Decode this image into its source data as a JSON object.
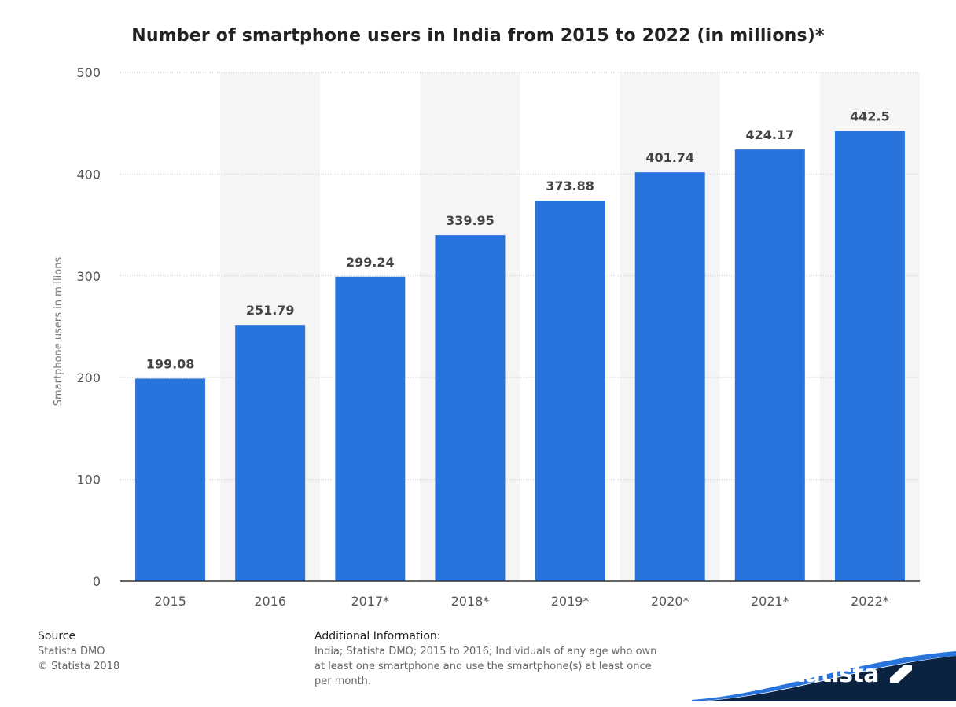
{
  "chart_data": {
    "type": "bar",
    "title": "Number of smartphone users in India from 2015 to 2022 (in millions)*",
    "categories": [
      "2015",
      "2016",
      "2017*",
      "2018*",
      "2019*",
      "2020*",
      "2021*",
      "2022*"
    ],
    "values": [
      199.08,
      251.79,
      299.24,
      339.95,
      373.88,
      401.74,
      424.17,
      442.5
    ],
    "value_labels": [
      "199.08",
      "251.79",
      "299.24",
      "339.95",
      "373.88",
      "401.74",
      "424.17",
      "442.5"
    ],
    "xlabel": "",
    "ylabel": "Smartphone users in millions",
    "ylim": [
      0,
      500
    ],
    "yticks": [
      "0",
      "100",
      "200",
      "300",
      "400",
      "500"
    ],
    "grid": true,
    "bar_color": "#2874dc",
    "band_colors": [
      "#ffffff",
      "#f5f5f5"
    ]
  },
  "footer": {
    "source_heading": "Source",
    "source_lines": [
      "Statista DMO",
      "© Statista 2018"
    ],
    "additional_heading": "Additional Information:",
    "additional_lines": [
      "India; Statista DMO; 2015 to 2016; Individuals of any age who own",
      "at least one smartphone and use the smartphone(s) at least once",
      "per month."
    ]
  },
  "brand": {
    "name": "statista",
    "logo_color": "#0b2240",
    "accent_color": "#2874dc"
  }
}
